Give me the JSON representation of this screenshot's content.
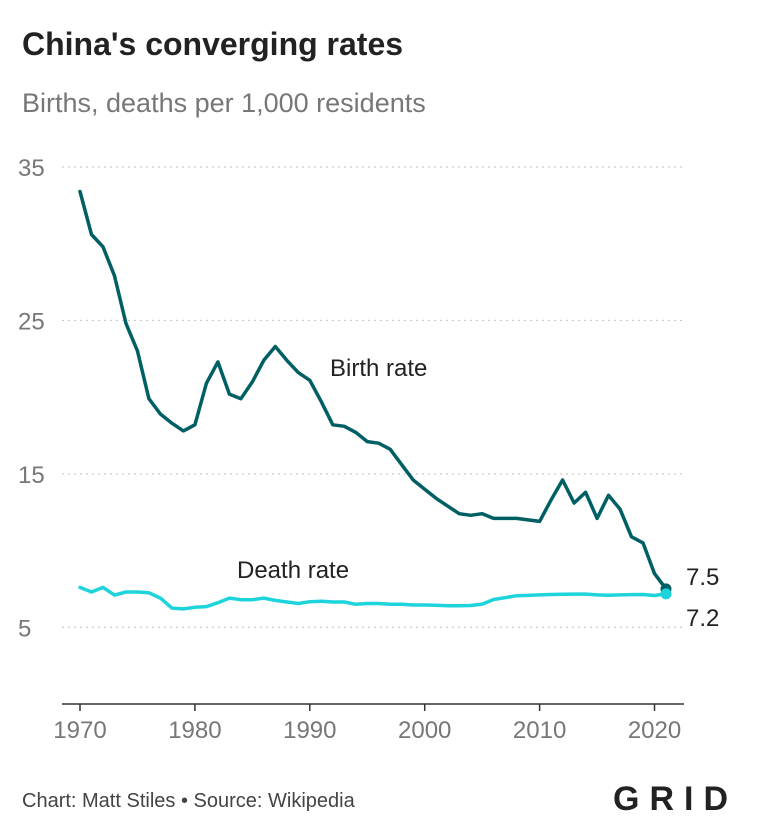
{
  "title": "China's converging rates",
  "subtitle": "Births, deaths per 1,000 residents",
  "footer": {
    "credit": "Chart: Matt Stiles",
    "separator": "•",
    "source": "Source: Wikipedia"
  },
  "brand": "GRID",
  "colors": {
    "birth": "#005f63",
    "death": "#1ed4dc",
    "grid": "#cccccc",
    "axis": "#333333",
    "tick_label": "#777777"
  },
  "chart_data": {
    "type": "line",
    "title": "China's converging rates",
    "subtitle": "Births, deaths per 1,000 residents",
    "xlabel": "",
    "ylabel": "",
    "xlim": [
      1970,
      2021
    ],
    "ylim": [
      0,
      35
    ],
    "yticks": [
      5,
      15,
      25,
      35
    ],
    "xticks": [
      1970,
      1980,
      1990,
      2000,
      2010,
      2020
    ],
    "grid": "horizontal dotted",
    "legend": "inline labels",
    "series": [
      {
        "name": "Birth rate",
        "end_label": "7.5",
        "x": [
          1970,
          1971,
          1972,
          1973,
          1974,
          1975,
          1976,
          1977,
          1978,
          1979,
          1980,
          1981,
          1982,
          1983,
          1984,
          1985,
          1986,
          1987,
          1988,
          1989,
          1990,
          1991,
          1992,
          1993,
          1994,
          1995,
          1996,
          1997,
          1998,
          1999,
          2000,
          2001,
          2002,
          2003,
          2004,
          2005,
          2006,
          2007,
          2008,
          2009,
          2010,
          2011,
          2012,
          2013,
          2014,
          2015,
          2016,
          2017,
          2018,
          2019,
          2020,
          2021
        ],
        "values": [
          33.4,
          30.6,
          29.8,
          27.9,
          24.8,
          23.0,
          19.9,
          18.9,
          18.3,
          17.8,
          18.2,
          20.9,
          22.3,
          20.2,
          19.9,
          21.0,
          22.4,
          23.3,
          22.4,
          21.6,
          21.1,
          19.7,
          18.2,
          18.1,
          17.7,
          17.1,
          17.0,
          16.6,
          15.6,
          14.6,
          14.0,
          13.4,
          12.9,
          12.4,
          12.3,
          12.4,
          12.1,
          12.1,
          12.1,
          12.0,
          11.9,
          13.3,
          14.6,
          13.1,
          13.8,
          12.1,
          13.6,
          12.7,
          10.9,
          10.5,
          8.5,
          7.5
        ]
      },
      {
        "name": "Death rate",
        "end_label": "7.2",
        "x": [
          1970,
          1971,
          1972,
          1973,
          1974,
          1975,
          1976,
          1977,
          1978,
          1979,
          1980,
          1981,
          1982,
          1983,
          1984,
          1985,
          1986,
          1987,
          1988,
          1989,
          1990,
          1991,
          1992,
          1993,
          1994,
          1995,
          1996,
          1997,
          1998,
          1999,
          2000,
          2001,
          2002,
          2003,
          2004,
          2005,
          2006,
          2007,
          2008,
          2009,
          2010,
          2011,
          2012,
          2013,
          2014,
          2015,
          2016,
          2017,
          2018,
          2019,
          2020,
          2021
        ],
        "values": [
          7.6,
          7.3,
          7.6,
          7.1,
          7.3,
          7.3,
          7.25,
          6.9,
          6.25,
          6.2,
          6.3,
          6.35,
          6.6,
          6.9,
          6.8,
          6.8,
          6.9,
          6.75,
          6.65,
          6.55,
          6.67,
          6.7,
          6.65,
          6.65,
          6.5,
          6.55,
          6.55,
          6.5,
          6.5,
          6.45,
          6.45,
          6.43,
          6.41,
          6.4,
          6.42,
          6.51,
          6.81,
          6.93,
          7.06,
          7.08,
          7.11,
          7.14,
          7.15,
          7.16,
          7.16,
          7.11,
          7.09,
          7.11,
          7.13,
          7.14,
          7.07,
          7.18
        ]
      }
    ]
  }
}
